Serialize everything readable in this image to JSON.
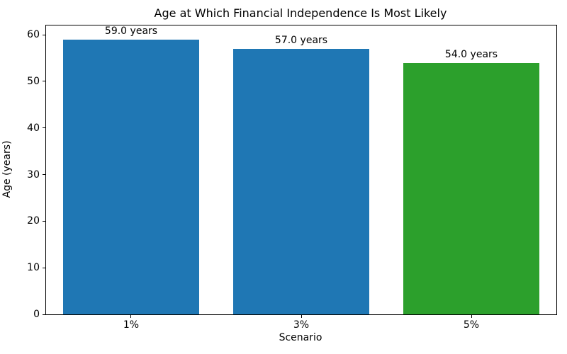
{
  "chart_data": {
    "type": "bar",
    "title": "Age at Which Financial Independence Is Most Likely",
    "xlabel": "Scenario",
    "ylabel": "Age (years)",
    "categories": [
      "1%",
      "3%",
      "5%"
    ],
    "values": [
      59.0,
      57.0,
      54.0
    ],
    "bar_labels": [
      "59.0 years",
      "57.0 years",
      "54.0 years"
    ],
    "bar_colors": [
      "#1f77b4",
      "#1f77b4",
      "#2ca02c"
    ],
    "ylim": [
      0,
      62
    ],
    "yticks": [
      0,
      10,
      20,
      30,
      40,
      50,
      60
    ],
    "grid": false,
    "legend": null,
    "bar_width_fraction": 0.8,
    "background_color": "#ffffff",
    "spine_color": "#000000",
    "text_color": "#000000"
  }
}
